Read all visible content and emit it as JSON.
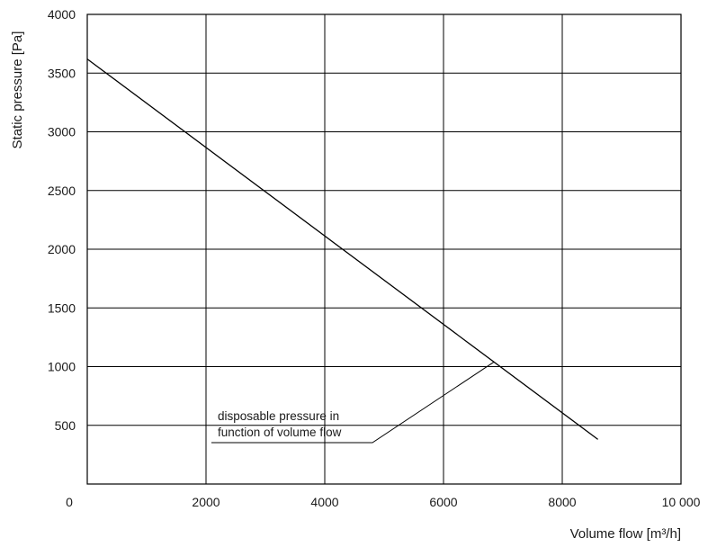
{
  "chart_data": {
    "type": "line",
    "title": "",
    "xlabel": "Volume flow [m³/h]",
    "ylabel": "Static pressure [Pa]",
    "xlim": [
      0,
      10000
    ],
    "ylim": [
      0,
      4000
    ],
    "x_ticks": [
      0,
      2000,
      4000,
      6000,
      8000,
      10000
    ],
    "x_tick_labels": [
      "0",
      "2000",
      "4000",
      "6000",
      "8000",
      "10 000"
    ],
    "y_ticks": [
      500,
      1000,
      1500,
      2000,
      2500,
      3000,
      3500,
      4000
    ],
    "y_tick_labels": [
      "500",
      "1000",
      "1500",
      "2000",
      "2500",
      "3000",
      "3500",
      "4000"
    ],
    "grid": true,
    "series": [
      {
        "x": [
          0,
          8600
        ],
        "y": [
          3620,
          380
        ]
      }
    ],
    "annotations": [
      {
        "lines": [
          "disposable pressure in",
          "function of volume flow"
        ],
        "points_to": {
          "x": 6850,
          "y": 1040
        }
      }
    ]
  }
}
